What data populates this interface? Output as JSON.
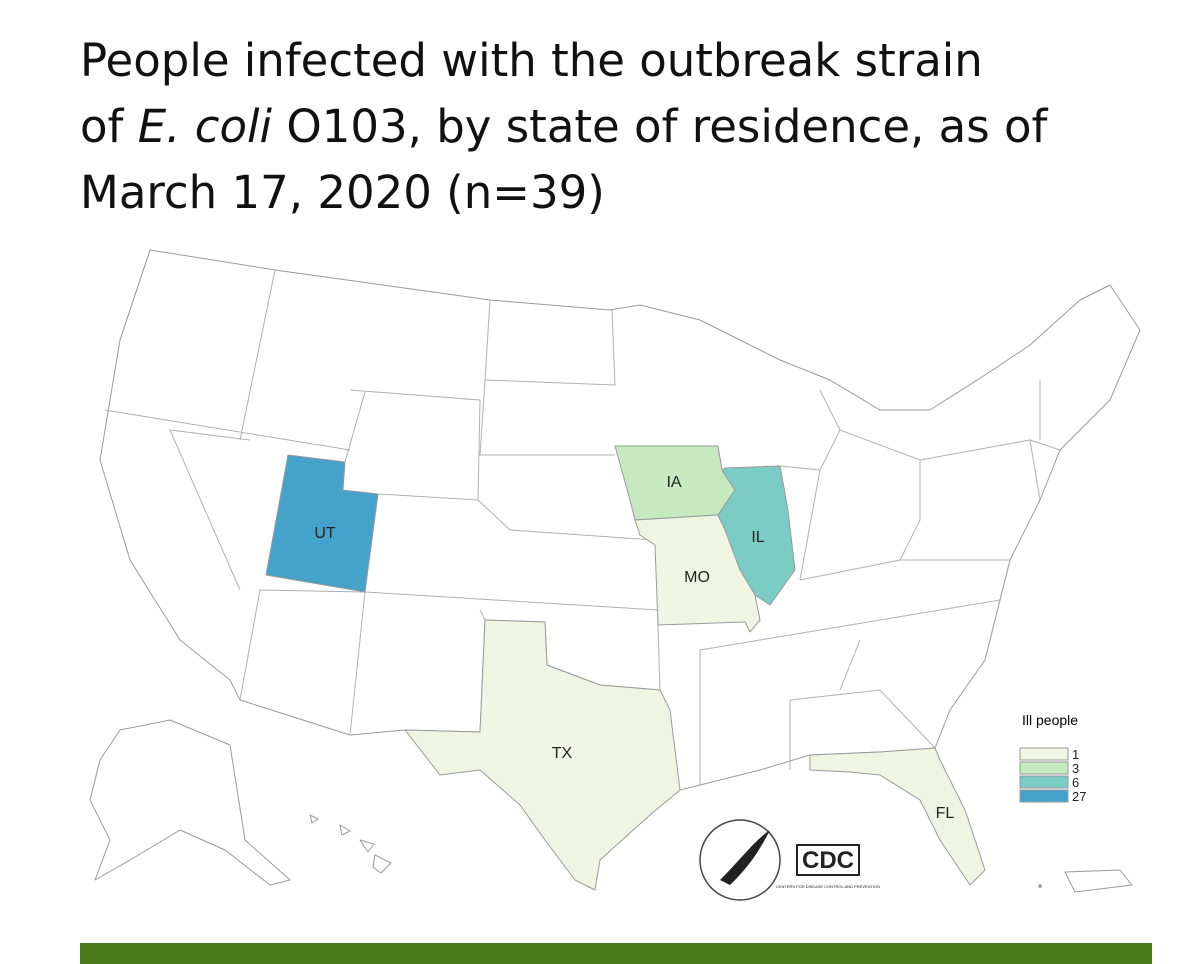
{
  "title": {
    "line1": "People infected with the outbreak strain",
    "line2_before": "of ",
    "line2_italic": "E. coli",
    "line2_after": " O103, by state of residence, as of",
    "line3": "March 17, 2020 (n=39)"
  },
  "map": {
    "states": [
      {
        "label": "UT",
        "count": 27
      },
      {
        "label": "IA",
        "count": 3
      },
      {
        "label": "IL",
        "count": 6
      },
      {
        "label": "MO",
        "count": 1
      },
      {
        "label": "TX",
        "count": 1
      },
      {
        "label": "FL",
        "count": 1
      }
    ],
    "legend": {
      "title": "Ill people",
      "items": [
        {
          "value": 1,
          "color": "#eef5e3"
        },
        {
          "value": 3,
          "color": "#c7e9c0"
        },
        {
          "value": 6,
          "color": "#7accc4"
        },
        {
          "value": 27,
          "color": "#45a3cb"
        }
      ]
    },
    "logo": {
      "name": "CDC",
      "tagline": "CENTERS FOR DISEASE CONTROL AND PREVENTION"
    }
  }
}
